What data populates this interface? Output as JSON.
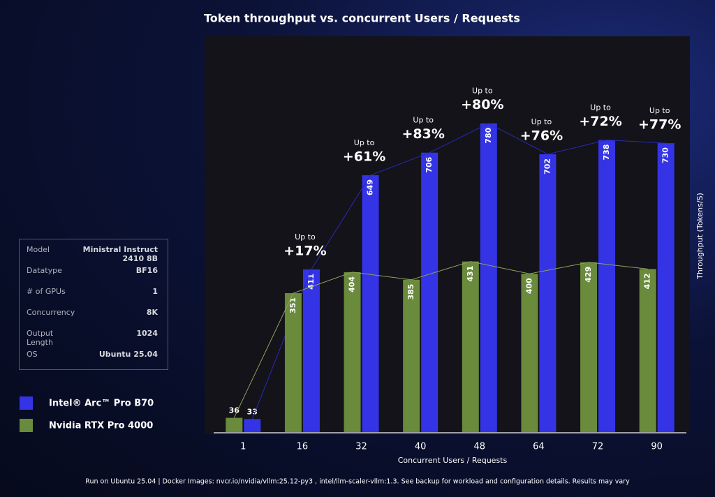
{
  "chart_data": {
    "type": "bar",
    "title": "Token throughput vs. concurrent Users / Requests",
    "x_label": "Concurrent Users / Requests",
    "y_label": "Throughput (Tokens/S)",
    "categories": [
      "1",
      "16",
      "32",
      "40",
      "48",
      "64",
      "72",
      "90"
    ],
    "series": [
      {
        "name": "Intel® Arc™ Pro B70",
        "color": "#3434e6",
        "values": [
          33,
          411,
          649,
          706,
          780,
          702,
          738,
          730
        ]
      },
      {
        "name": "Nvidia RTX Pro 4000",
        "color": "#6a8a3c",
        "values": [
          36,
          351,
          404,
          385,
          431,
          400,
          429,
          412
        ]
      }
    ],
    "ylim": [
      0,
      1000
    ],
    "annotation_prefix": "Up to",
    "annotations": [
      null,
      "+17%",
      "+61%",
      "+83%",
      "+80%",
      "+76%",
      "+72%",
      "+77%"
    ]
  },
  "specs": {
    "rows": [
      [
        "Model",
        "Ministral Instruct 2410 8B"
      ],
      [
        "Datatype",
        "BF16"
      ],
      [
        "# of GPUs",
        "1"
      ],
      [
        "Concurrency",
        "8K"
      ],
      [
        "Output Length",
        "1024"
      ],
      [
        "OS",
        "Ubuntu 25.04"
      ]
    ]
  },
  "footer": "Run on Ubuntu 25.04 | Docker Images:  nvcr.io/nvidia/vllm:25.12-py3 , intel/llm-scaler-vllm:1.3. See backup for workload and configuration details. Results may vary"
}
